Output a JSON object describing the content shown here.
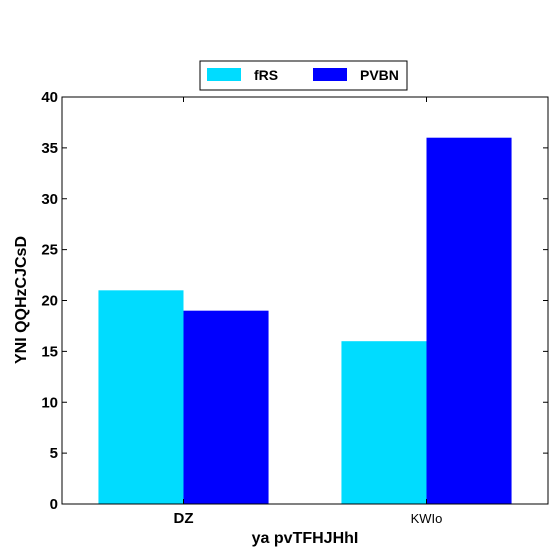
{
  "chart_data": {
    "type": "bar",
    "categories": [
      "DZ",
      "KWIo"
    ],
    "category_bold": [
      true,
      false
    ],
    "series": [
      {
        "name": "fRS",
        "color": "#00dcff",
        "values": [
          21,
          16
        ]
      },
      {
        "name": "PVBN",
        "color": "#0000ff",
        "values": [
          19,
          36
        ]
      }
    ],
    "xlabel": "ya pvTFHJHhI",
    "ylabel": "YNI QQHzCJCsD",
    "ylim": [
      0,
      40
    ],
    "yticks": [
      0,
      5,
      10,
      15,
      20,
      25,
      30,
      35,
      40
    ],
    "grid": false,
    "legend_position": "top-center"
  }
}
